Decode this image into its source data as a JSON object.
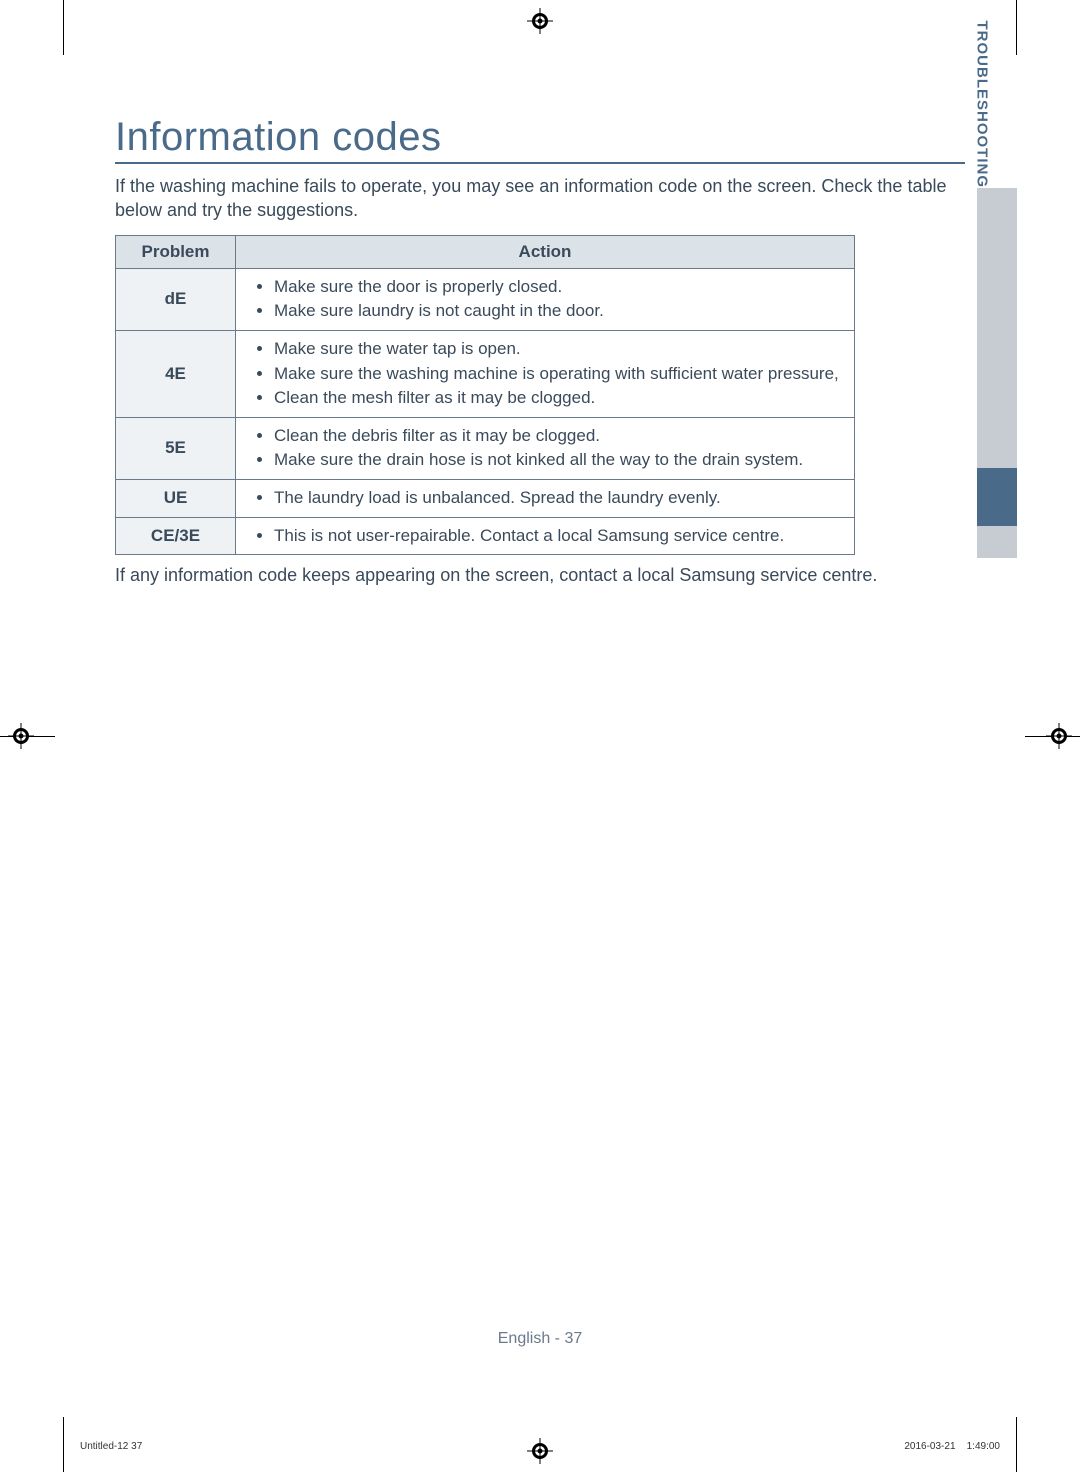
{
  "section": {
    "title": "Information codes",
    "intro": "If the washing machine fails to operate, you may see an information code on the screen. Check the table below and try the suggestions.",
    "footer_note": "If any information code keeps appearing on the screen, contact a local Samsung service centre."
  },
  "table": {
    "header_problem": "Problem",
    "header_action": "Action",
    "rows": [
      {
        "code": "dE",
        "actions": [
          "Make sure the door is properly closed.",
          "Make sure laundry is not caught in the door."
        ]
      },
      {
        "code": "4E",
        "actions": [
          "Make sure the water tap is open.",
          "Make sure the washing machine is operating with sufficient water pressure,",
          "Clean the mesh filter as it may be clogged."
        ]
      },
      {
        "code": "5E",
        "actions": [
          "Clean the debris filter as it may be clogged.",
          "Make sure the drain hose is not kinked all the way to the drain system."
        ]
      },
      {
        "code": "UE",
        "actions": [
          "The laundry load is unbalanced. Spread the laundry evenly."
        ]
      },
      {
        "code": "CE/3E",
        "actions": [
          "This is not user-repairable. Contact a local Samsung service centre."
        ]
      }
    ]
  },
  "side_tab": {
    "label": "TROUBLESHOOTING"
  },
  "page_number": "English - 37",
  "footer": {
    "left": "Untitled-12   37",
    "right": "2016-03-21      1:49:00"
  },
  "colors": {
    "heading": "#4a6a8a",
    "body_text": "#3a4a5a",
    "table_border": "#6a7a8a",
    "table_header_bg": "#dbe2e8",
    "table_code_bg": "#eef2f5",
    "sidebar_light": "#c6ccd2",
    "sidebar_dark": "#4a6a8a"
  }
}
